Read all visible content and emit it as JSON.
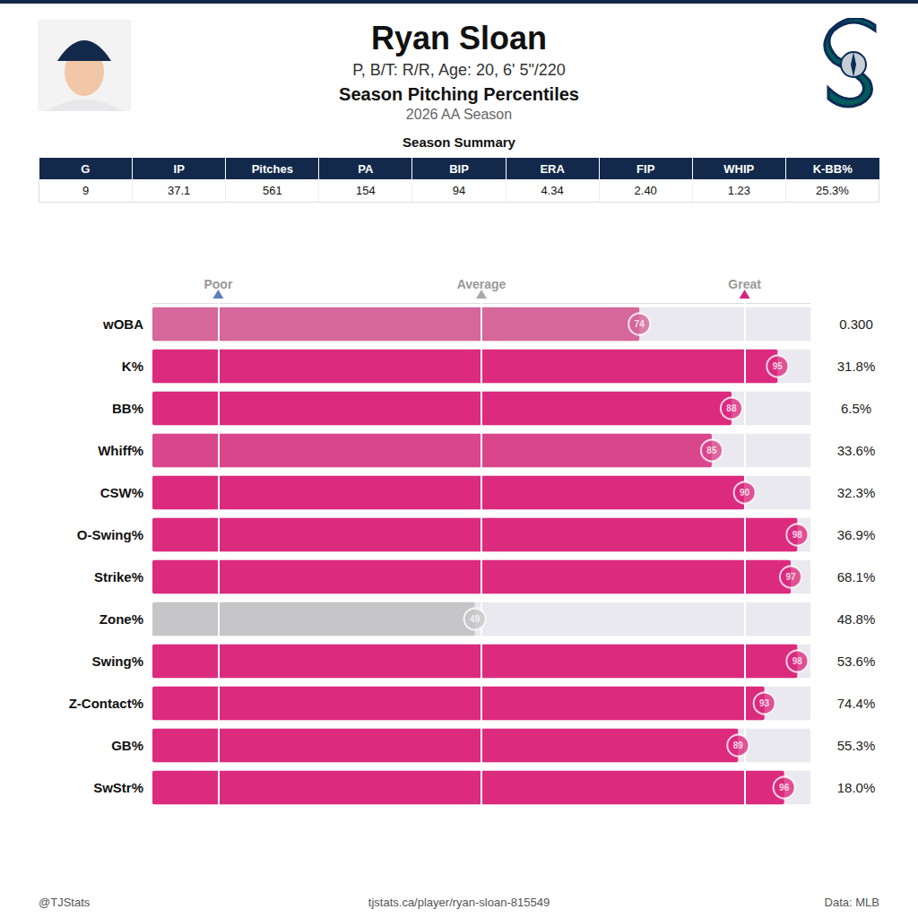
{
  "header": {
    "title": "Ryan Sloan",
    "subtitle": "P, B/T: R/R, Age: 20, 6' 5\"/220",
    "heading": "Season Pitching Percentiles",
    "season": "2026 AA Season"
  },
  "season_summary": {
    "title": "Season Summary",
    "columns": [
      "G",
      "IP",
      "Pitches",
      "PA",
      "BIP",
      "ERA",
      "FIP",
      "WHIP",
      "K-BB%"
    ],
    "rows": [
      [
        "9",
        "37.1",
        "561",
        "154",
        "94",
        "4.34",
        "2.40",
        "1.23",
        "25.3%"
      ]
    ]
  },
  "chart_data": {
    "type": "bar",
    "orientation": "horizontal",
    "categories": [
      "wOBA",
      "K%",
      "BB%",
      "Whiff%",
      "CSW%",
      "O-Swing%",
      "Strike%",
      "Zone%",
      "Swing%",
      "Z-Contact%",
      "GB%",
      "SwStr%"
    ],
    "values": [
      74,
      95,
      88,
      85,
      90,
      98,
      97,
      49,
      98,
      93,
      89,
      96
    ],
    "colors": [
      "#d5679a",
      "#dc2a7e",
      "#dc2a7e",
      "#d9468c",
      "#dc2a7e",
      "#dc2a7e",
      "#dc2a7e",
      "#c6c6c8",
      "#dc2a7e",
      "#dc2a7e",
      "#dc2a7e",
      "#dc2a7e"
    ],
    "stat_labels": [
      "0.300",
      "31.8%",
      "6.5%",
      "33.6%",
      "32.3%",
      "36.9%",
      "68.1%",
      "48.8%",
      "53.6%",
      "74.4%",
      "55.3%",
      "18.0%"
    ],
    "xlim": [
      0,
      100
    ],
    "xticks": [
      {
        "value": 10,
        "label": "Poor"
      },
      {
        "value": 50,
        "label": "Average"
      },
      {
        "value": 90,
        "label": "Great"
      }
    ],
    "grid": true,
    "data_labels": true
  },
  "footer": {
    "left": "@TJStats",
    "center": "tjstats.ca/player/ryan-sloan-815549",
    "right": "Data: MLB"
  }
}
